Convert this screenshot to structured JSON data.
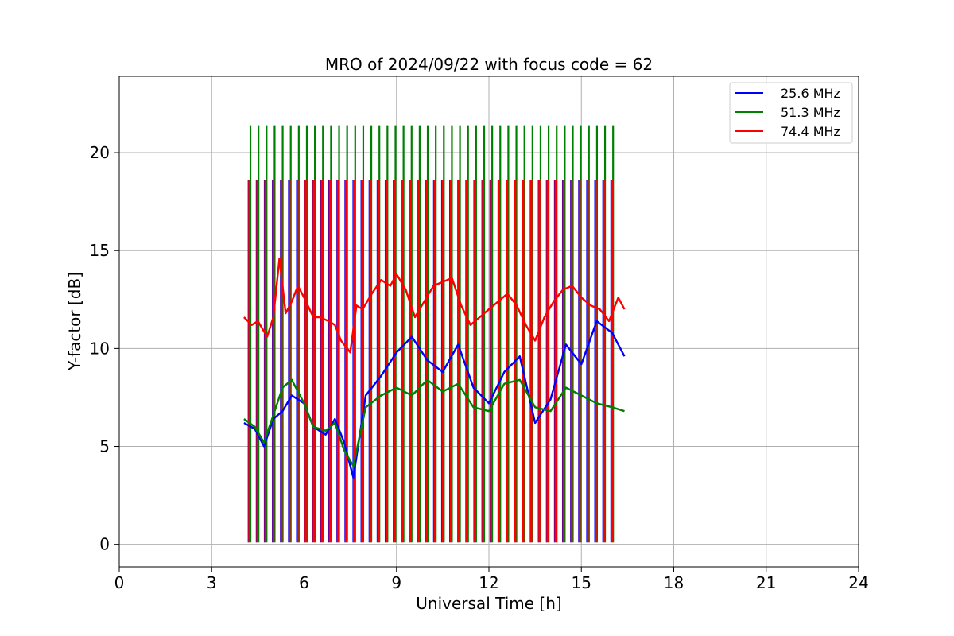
{
  "chart_data": {
    "type": "line",
    "title": "MRO of 2024/09/22 with focus code = 62",
    "xlabel": "Universal Time [h]",
    "ylabel": "Y-factor [dB]",
    "xlim": [
      0,
      24
    ],
    "ylim": [
      -1.15,
      23.9
    ],
    "x_ticks": [
      0,
      3,
      6,
      9,
      12,
      15,
      18,
      21,
      24
    ],
    "y_ticks": [
      0,
      5,
      10,
      15,
      20
    ],
    "grid": true,
    "legend_position": "top-right",
    "calibration_spikes": {
      "start_hour": 4.22,
      "interval_hours": 0.2616,
      "count": 46,
      "red_peak": 18.6,
      "green_peak": 21.4,
      "floor": 0.1
    },
    "series": [
      {
        "name": "25.6 MHz",
        "color": "#0000ff",
        "x": [
          4.05,
          4.4,
          4.7,
          5.0,
          5.3,
          5.6,
          6.0,
          6.3,
          6.7,
          7.0,
          7.3,
          7.6,
          8.0,
          8.5,
          9.0,
          9.5,
          10.0,
          10.5,
          11.0,
          11.5,
          12.0,
          12.5,
          13.0,
          13.5,
          14.0,
          14.5,
          15.0,
          15.5,
          16.0,
          16.4
        ],
        "y": [
          6.2,
          5.9,
          5.0,
          6.4,
          6.8,
          7.6,
          7.2,
          6.0,
          5.6,
          6.4,
          5.2,
          3.4,
          7.6,
          8.6,
          9.8,
          10.6,
          9.4,
          8.8,
          10.2,
          8.0,
          7.2,
          8.8,
          9.6,
          6.2,
          7.4,
          10.2,
          9.2,
          11.4,
          10.8,
          9.6
        ]
      },
      {
        "name": "51.3 MHz",
        "color": "#008000",
        "x": [
          4.05,
          4.4,
          4.7,
          5.0,
          5.3,
          5.6,
          6.0,
          6.3,
          6.7,
          7.0,
          7.3,
          7.6,
          8.0,
          8.5,
          9.0,
          9.5,
          10.0,
          10.5,
          11.0,
          11.5,
          12.0,
          12.5,
          13.0,
          13.5,
          14.0,
          14.5,
          15.0,
          15.5,
          16.0,
          16.4
        ],
        "y": [
          6.4,
          6.0,
          5.2,
          6.6,
          8.0,
          8.4,
          7.2,
          6.0,
          5.8,
          6.2,
          4.8,
          4.0,
          7.0,
          7.6,
          8.0,
          7.6,
          8.4,
          7.8,
          8.2,
          7.0,
          6.8,
          8.2,
          8.4,
          7.0,
          6.8,
          8.0,
          7.6,
          7.2,
          7.0,
          6.8
        ]
      },
      {
        "name": "74.4 MHz",
        "color": "#ff0000",
        "x": [
          4.05,
          4.3,
          4.5,
          4.8,
          5.0,
          5.2,
          5.4,
          5.6,
          5.8,
          6.0,
          6.3,
          6.5,
          6.8,
          7.0,
          7.2,
          7.5,
          7.7,
          7.9,
          8.2,
          8.5,
          8.8,
          9.0,
          9.3,
          9.6,
          9.9,
          10.2,
          10.5,
          10.8,
          11.1,
          11.4,
          11.7,
          12.0,
          12.3,
          12.6,
          12.9,
          13.2,
          13.5,
          13.8,
          14.1,
          14.4,
          14.7,
          15.0,
          15.3,
          15.6,
          15.9,
          16.2,
          16.4
        ],
        "y": [
          11.6,
          11.2,
          11.4,
          10.6,
          11.6,
          14.6,
          11.8,
          12.4,
          13.2,
          12.6,
          11.6,
          11.6,
          11.4,
          11.2,
          10.4,
          9.8,
          12.2,
          12.0,
          12.8,
          13.5,
          13.2,
          13.8,
          13.0,
          11.6,
          12.4,
          13.2,
          13.4,
          13.6,
          12.2,
          11.2,
          11.6,
          12.0,
          12.4,
          12.8,
          12.2,
          11.2,
          10.4,
          11.6,
          12.4,
          13.0,
          13.2,
          12.6,
          12.2,
          12.0,
          11.4,
          12.6,
          12.0
        ]
      }
    ]
  }
}
